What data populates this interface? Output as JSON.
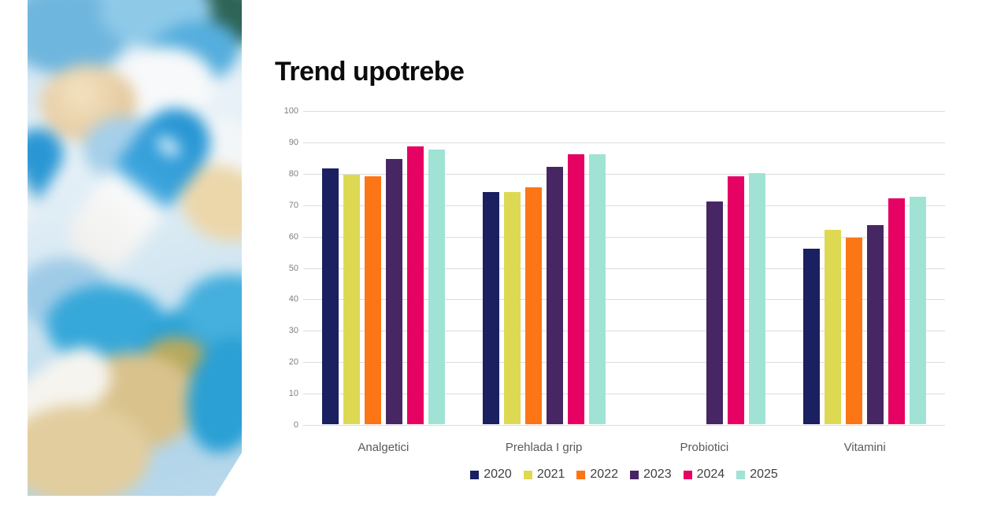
{
  "slide": {
    "title": "Trend upotrebe"
  },
  "photo": {
    "description": "close-up of blue and white capsules and beige tablets, blurred"
  },
  "chart_data": {
    "type": "bar",
    "title": "Trend upotrebe",
    "categories": [
      "Analgetici",
      "Prehlada I grip",
      "Probiotici",
      "Vitamini"
    ],
    "series": [
      {
        "name": "2020",
        "color": "#1a2060",
        "values": [
          81.5,
          74,
          null,
          56
        ]
      },
      {
        "name": "2021",
        "color": "#ded953",
        "values": [
          79.5,
          74,
          null,
          62
        ]
      },
      {
        "name": "2022",
        "color": "#fd7616",
        "values": [
          79,
          75.5,
          null,
          59.5
        ]
      },
      {
        "name": "2023",
        "color": "#472763",
        "values": [
          84.5,
          82,
          71,
          63.5
        ]
      },
      {
        "name": "2024",
        "color": "#e50263",
        "values": [
          88.5,
          86,
          79,
          72
        ]
      },
      {
        "name": "2025",
        "color": "#a0e3d5",
        "values": [
          87.5,
          86,
          80,
          72.5
        ]
      }
    ],
    "ylim": [
      0,
      100
    ],
    "yticks": [
      0,
      10,
      20,
      30,
      40,
      50,
      60,
      70,
      80,
      90,
      100
    ],
    "grid": "horizontal",
    "legend_position": "bottom-center",
    "colors": {
      "gridline": "#dcdcdc",
      "y_tick_text": "#7f7f7f",
      "category_text": "#595959",
      "legend_text": "#404040",
      "title_text": "#0c0c0c"
    }
  }
}
